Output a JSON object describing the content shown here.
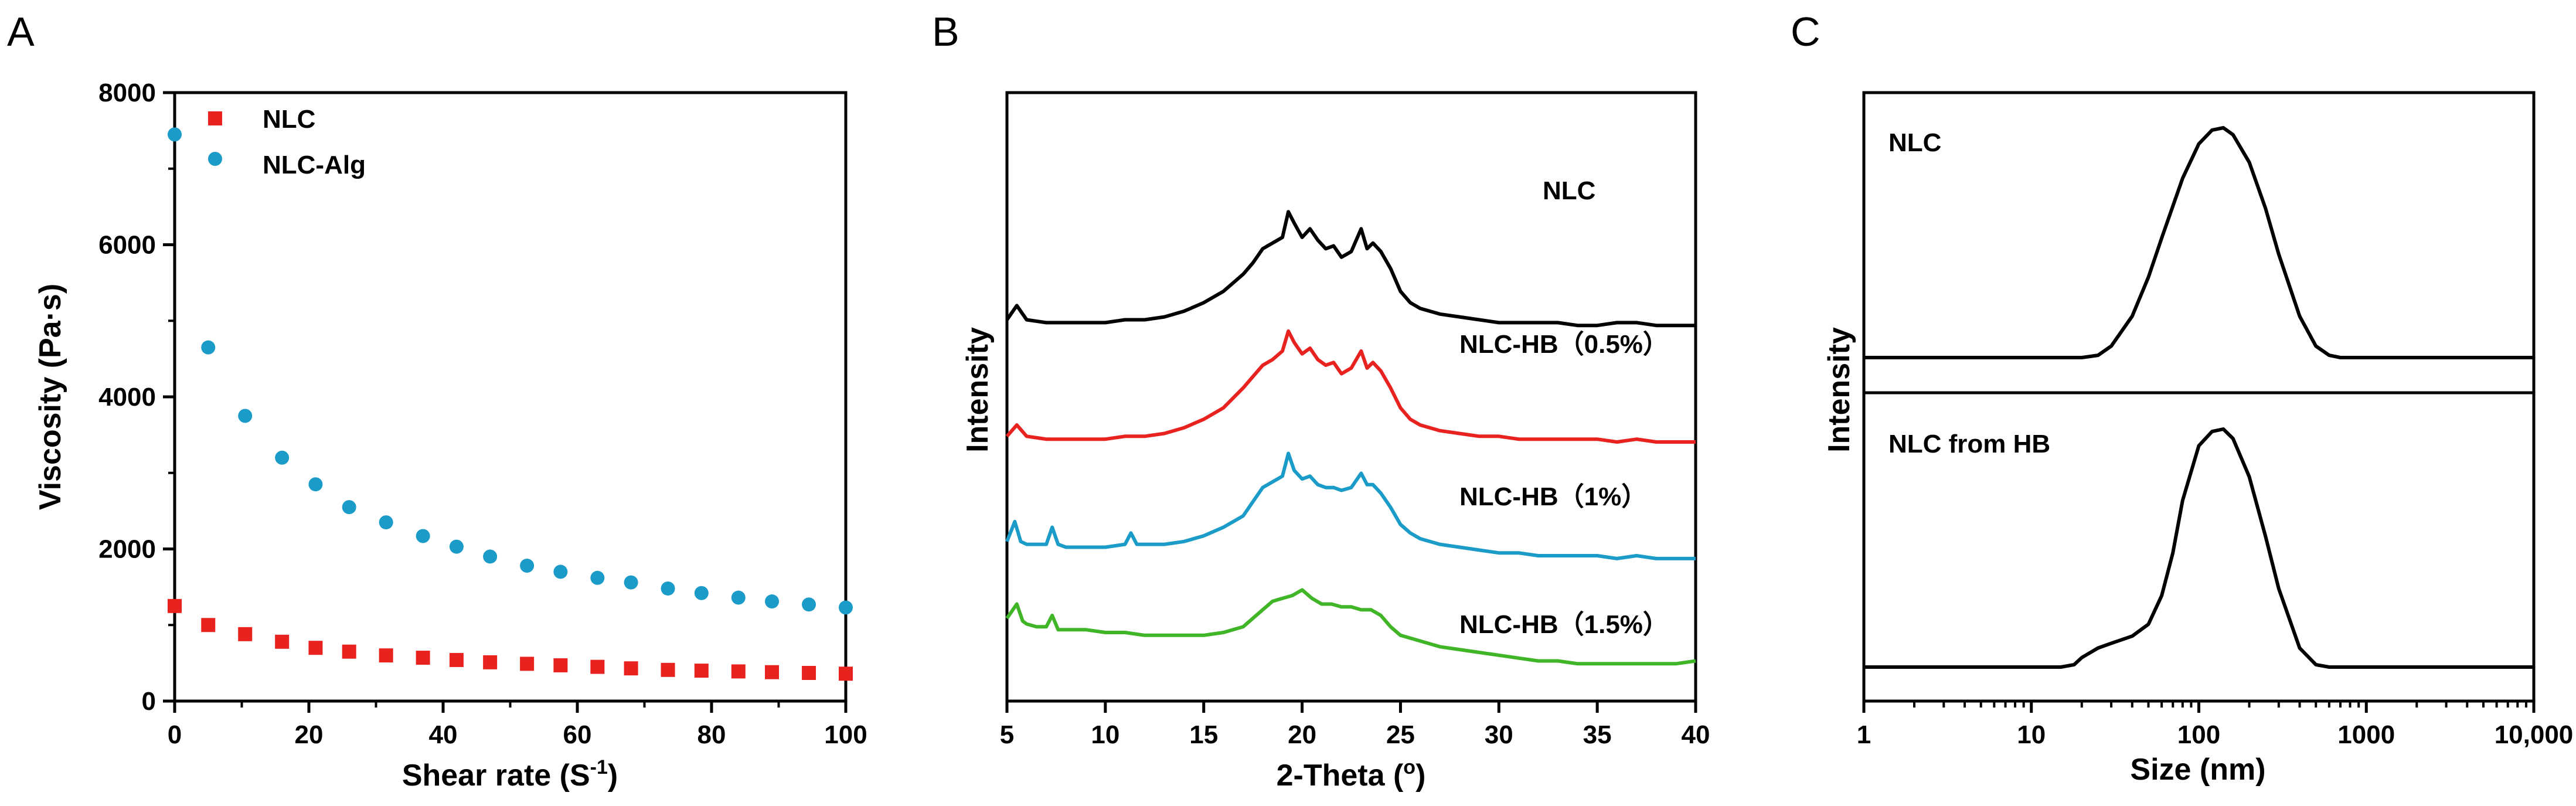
{
  "chart_data": [
    {
      "panel": "A",
      "type": "scatter",
      "xlabel": "Shear rate  (S",
      "xlabel_sup": "-1",
      "xlabel_end": ")",
      "ylabel": "Viscosity (Pa·s)",
      "xlim": [
        0,
        100
      ],
      "ylim": [
        0,
        8000
      ],
      "x_ticks": [
        0,
        20,
        40,
        60,
        80,
        100
      ],
      "x_tick_labels": [
        "0",
        "20",
        "40",
        "60",
        "80",
        "100"
      ],
      "y_ticks": [
        0,
        2000,
        4000,
        6000,
        8000
      ],
      "y_tick_labels": [
        "0",
        "2000",
        "4000",
        "6000",
        "8000"
      ],
      "legend_position": "top-left",
      "series": [
        {
          "name": "NLC",
          "color": "#e8231f",
          "marker": "square",
          "x": [
            0,
            5,
            10.5,
            16,
            21,
            26,
            31.5,
            37,
            42,
            47,
            52.5,
            57.5,
            63,
            68,
            73.5,
            78.5,
            84,
            89,
            94.5,
            100
          ],
          "y": [
            1250,
            1000,
            880,
            780,
            700,
            650,
            600,
            570,
            540,
            510,
            490,
            470,
            450,
            430,
            410,
            400,
            390,
            380,
            370,
            360
          ]
        },
        {
          "name": "NLC-Alg",
          "color": "#1b9bc7",
          "marker": "circle",
          "x": [
            0,
            5,
            10.5,
            16,
            21,
            26,
            31.5,
            37,
            42,
            47,
            52.5,
            57.5,
            63,
            68,
            73.5,
            78.5,
            84,
            89,
            94.5,
            100
          ],
          "y": [
            7450,
            4650,
            3750,
            3200,
            2850,
            2550,
            2350,
            2170,
            2030,
            1900,
            1780,
            1700,
            1620,
            1560,
            1480,
            1420,
            1360,
            1310,
            1270,
            1230
          ]
        }
      ]
    },
    {
      "panel": "B",
      "type": "line",
      "xlabel": "2-Theta (",
      "xlabel_sup": "o",
      "xlabel_end": ")",
      "ylabel": "Intensity",
      "xlim": [
        5,
        40
      ],
      "x_ticks": [
        5,
        10,
        15,
        20,
        25,
        30,
        35,
        40
      ],
      "x_tick_labels": [
        "5",
        "10",
        "15",
        "20",
        "25",
        "30",
        "35",
        "40"
      ],
      "y_ticks": [],
      "series": [
        {
          "name": "NLC",
          "color": "#000000",
          "baseline": 6.45,
          "x": [
            5,
            5.5,
            6,
            7,
            8,
            9,
            10,
            11,
            12,
            13,
            14,
            15,
            16,
            17,
            17.5,
            18,
            18.5,
            19,
            19.3,
            19.6,
            20,
            20.4,
            20.8,
            21.2,
            21.6,
            22,
            22.5,
            23,
            23.3,
            23.6,
            24,
            24.5,
            25,
            25.5,
            26,
            27,
            28,
            29,
            30,
            31,
            32,
            33,
            34,
            35,
            36,
            37,
            38,
            39,
            40
          ],
          "y": [
            6.5,
            6.75,
            6.5,
            6.45,
            6.45,
            6.45,
            6.45,
            6.5,
            6.5,
            6.55,
            6.65,
            6.8,
            7.0,
            7.3,
            7.5,
            7.75,
            7.85,
            7.95,
            8.4,
            8.2,
            7.95,
            8.1,
            7.9,
            7.75,
            7.8,
            7.6,
            7.7,
            8.1,
            7.75,
            7.85,
            7.7,
            7.4,
            7.0,
            6.8,
            6.7,
            6.6,
            6.55,
            6.5,
            6.45,
            6.45,
            6.45,
            6.45,
            6.4,
            6.4,
            6.45,
            6.45,
            6.4,
            6.4,
            6.4
          ]
        },
        {
          "name": "NLC-HB（0.5%）",
          "color": "#e8231f",
          "baseline": 4.4,
          "x": [
            5,
            5.5,
            6,
            7,
            8,
            9,
            10,
            11,
            12,
            13,
            14,
            15,
            16,
            17,
            17.5,
            18,
            18.5,
            19,
            19.3,
            19.6,
            20,
            20.4,
            20.8,
            21.2,
            21.6,
            22,
            22.5,
            23,
            23.3,
            23.6,
            24,
            24.5,
            25,
            25.5,
            26,
            27,
            28,
            29,
            30,
            31,
            32,
            33,
            34,
            35,
            36,
            37,
            38,
            39,
            40
          ],
          "y": [
            4.45,
            4.65,
            4.45,
            4.4,
            4.4,
            4.4,
            4.4,
            4.45,
            4.45,
            4.5,
            4.6,
            4.75,
            4.95,
            5.3,
            5.5,
            5.7,
            5.8,
            5.95,
            6.3,
            6.1,
            5.9,
            6.0,
            5.8,
            5.7,
            5.75,
            5.55,
            5.65,
            5.95,
            5.65,
            5.75,
            5.6,
            5.3,
            4.95,
            4.75,
            4.65,
            4.55,
            4.5,
            4.45,
            4.45,
            4.4,
            4.4,
            4.4,
            4.4,
            4.4,
            4.35,
            4.4,
            4.35,
            4.35,
            4.35
          ]
        },
        {
          "name": "NLC-HB（1%）",
          "color": "#1b9bc7",
          "baseline": 2.45,
          "x": [
            5,
            5.4,
            5.7,
            6,
            7,
            7.3,
            7.6,
            8,
            9,
            10,
            11,
            11.3,
            11.6,
            12,
            13,
            14,
            15,
            16,
            17,
            17.5,
            18,
            18.5,
            19,
            19.3,
            19.6,
            20,
            20.4,
            20.8,
            21.2,
            21.6,
            22,
            22.5,
            23,
            23.3,
            23.6,
            24,
            24.5,
            25,
            25.5,
            26,
            27,
            28,
            29,
            30,
            31,
            32,
            33,
            34,
            35,
            36,
            37,
            38,
            39,
            40
          ],
          "y": [
            2.6,
            2.95,
            2.6,
            2.55,
            2.55,
            2.85,
            2.55,
            2.5,
            2.5,
            2.5,
            2.55,
            2.75,
            2.55,
            2.55,
            2.55,
            2.6,
            2.7,
            2.85,
            3.05,
            3.3,
            3.55,
            3.65,
            3.75,
            4.15,
            3.85,
            3.7,
            3.75,
            3.6,
            3.55,
            3.55,
            3.5,
            3.55,
            3.8,
            3.6,
            3.6,
            3.45,
            3.2,
            2.9,
            2.75,
            2.65,
            2.55,
            2.5,
            2.45,
            2.4,
            2.4,
            2.35,
            2.35,
            2.35,
            2.35,
            2.3,
            2.35,
            2.3,
            2.3,
            2.3
          ]
        },
        {
          "name": "NLC-HB（1.5%）",
          "color": "#40b527",
          "baseline": 0.5,
          "x": [
            5,
            5.5,
            5.8,
            6,
            6.5,
            7,
            7.3,
            7.6,
            8,
            9,
            10,
            11,
            12,
            13,
            14,
            15,
            16,
            17,
            17.5,
            18,
            18.5,
            19,
            19.5,
            20,
            20.5,
            21,
            21.5,
            22,
            22.5,
            23,
            23.5,
            24,
            24.5,
            25,
            26,
            27,
            28,
            29,
            30,
            31,
            32,
            33,
            34,
            35,
            36,
            37,
            38,
            39,
            40
          ],
          "y": [
            1.25,
            1.5,
            1.2,
            1.15,
            1.1,
            1.1,
            1.3,
            1.05,
            1.05,
            1.05,
            1.0,
            1.0,
            0.95,
            0.95,
            0.95,
            0.95,
            1.0,
            1.1,
            1.25,
            1.4,
            1.55,
            1.6,
            1.65,
            1.75,
            1.6,
            1.5,
            1.5,
            1.45,
            1.45,
            1.4,
            1.4,
            1.3,
            1.1,
            0.95,
            0.85,
            0.75,
            0.7,
            0.65,
            0.6,
            0.55,
            0.5,
            0.5,
            0.45,
            0.45,
            0.45,
            0.45,
            0.45,
            0.45,
            0.5
          ]
        }
      ]
    },
    {
      "panel": "C",
      "type": "line",
      "xscale": "log",
      "xlabel": "Size (nm)",
      "ylabel": "Intensity",
      "xlim": [
        1,
        10000
      ],
      "x_ticks": [
        1,
        10,
        100,
        1000,
        10000
      ],
      "x_tick_labels": [
        "1",
        "10",
        "100",
        "1000",
        "10,000"
      ],
      "y_ticks": [],
      "subplots": [
        {
          "name": "NLC",
          "color": "#000000",
          "x": [
            20,
            25,
            30,
            40,
            50,
            60,
            80,
            100,
            120,
            140,
            160,
            200,
            250,
            300,
            400,
            500,
            600,
            700,
            800,
            1000,
            10000
          ],
          "y": [
            0,
            0.01,
            0.05,
            0.18,
            0.35,
            0.52,
            0.78,
            0.93,
            0.99,
            1.0,
            0.97,
            0.85,
            0.65,
            0.45,
            0.18,
            0.05,
            0.01,
            0,
            0,
            0,
            0
          ]
        },
        {
          "name": "NLC from HB",
          "color": "#000000",
          "x": [
            1,
            15,
            18,
            20,
            25,
            30,
            40,
            50,
            60,
            70,
            80,
            100,
            120,
            140,
            160,
            200,
            250,
            300,
            400,
            500,
            600,
            1000,
            10000
          ],
          "y": [
            0,
            0,
            0.01,
            0.04,
            0.08,
            0.1,
            0.13,
            0.18,
            0.3,
            0.48,
            0.7,
            0.93,
            0.99,
            1.0,
            0.96,
            0.8,
            0.55,
            0.33,
            0.08,
            0.01,
            0,
            0,
            0
          ]
        }
      ]
    }
  ]
}
